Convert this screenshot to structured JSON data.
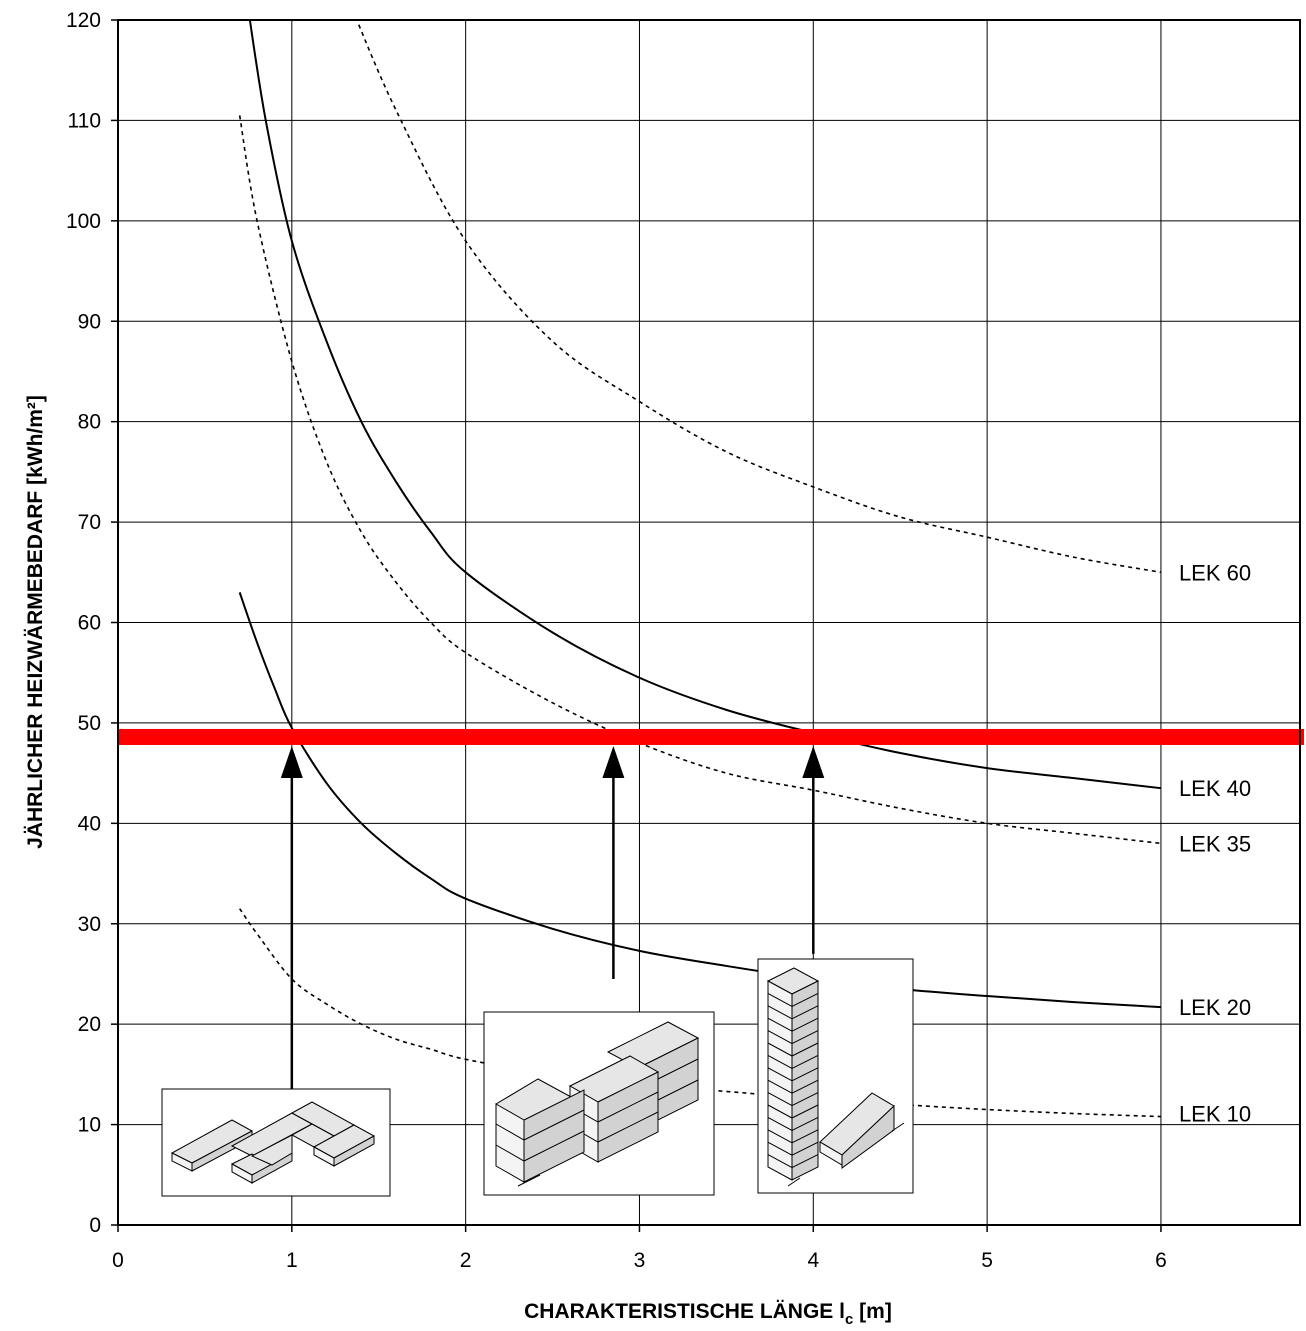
{
  "chart_data": {
    "type": "line",
    "xlabel_main": "CHARAKTERISTISCHE LÄNGE l",
    "xlabel_sub": "c",
    "xlabel_unit": " [m]",
    "ylabel": "JÄHRLICHER HEIZWÄRMEBEDARF  [kWh/m²]",
    "xlim": [
      0,
      6.8
    ],
    "ylim": [
      0,
      120
    ],
    "x_ticks": [
      "0",
      "1",
      "2",
      "3",
      "4",
      "5",
      "6"
    ],
    "y_ticks": [
      "0",
      "10",
      "20",
      "30",
      "40",
      "50",
      "60",
      "70",
      "80",
      "90",
      "100",
      "110",
      "120"
    ],
    "grid": true,
    "series": [
      {
        "name": "LEK 60",
        "style": "dotted",
        "x": [
          1.35,
          1.6,
          2.0,
          2.5,
          3.0,
          3.5,
          4.0,
          4.5,
          5.0,
          5.5,
          6.0
        ],
        "y": [
          121,
          111,
          98,
          88,
          82,
          77,
          73.5,
          70.5,
          68.5,
          66.5,
          65
        ]
      },
      {
        "name": "LEK 40",
        "style": "solid",
        "x": [
          0.75,
          0.85,
          1.0,
          1.2,
          1.4,
          1.6,
          1.8,
          2.0,
          2.5,
          3.0,
          3.5,
          4.0,
          4.5,
          5.0,
          5.5,
          6.0
        ],
        "y": [
          121,
          110,
          98,
          88,
          80,
          74,
          69,
          65,
          59,
          54.5,
          51.3,
          49,
          47,
          45.5,
          44.5,
          43.5
        ]
      },
      {
        "name": "LEK 35",
        "style": "dotted",
        "x": [
          0.7,
          0.8,
          1.0,
          1.2,
          1.4,
          1.6,
          1.8,
          2.0,
          2.5,
          3.0,
          3.5,
          4.0,
          4.5,
          5.0,
          5.5,
          6.0
        ],
        "y": [
          110.5,
          100,
          86,
          76,
          69,
          64,
          60,
          57,
          52,
          48,
          45,
          43.3,
          41.5,
          40,
          39,
          38
        ]
      },
      {
        "name": "LEK 20",
        "style": "solid",
        "x": [
          0.7,
          0.8,
          0.9,
          1.0,
          1.2,
          1.4,
          1.6,
          1.8,
          2.0,
          2.5,
          3.0,
          3.5,
          4.0,
          4.5,
          5.0,
          5.5,
          6.0
        ],
        "y": [
          63,
          58,
          53.5,
          49.5,
          44,
          40,
          37,
          34.5,
          32.5,
          29.5,
          27.3,
          25.8,
          24.5,
          23.5,
          22.8,
          22.2,
          21.7
        ]
      },
      {
        "name": "LEK 10",
        "style": "dotted",
        "x": [
          0.7,
          0.8,
          1.0,
          1.2,
          1.4,
          1.6,
          1.8,
          2.0,
          2.5,
          3.0,
          3.5,
          4.0,
          4.5,
          5.0,
          5.5,
          6.0
        ],
        "y": [
          31.5,
          29,
          24.5,
          22,
          20,
          18.5,
          17.5,
          16.5,
          15,
          14,
          13.3,
          12.6,
          12,
          11.5,
          11.1,
          10.8
        ]
      }
    ],
    "reference_line": {
      "y": 48.6,
      "color": "#ff0000"
    },
    "arrows": [
      {
        "x": 1.0,
        "from_y": 13.5,
        "to_y": 47.5
      },
      {
        "x": 2.85,
        "from_y": 24.5,
        "to_y": 47.5
      },
      {
        "x": 4.0,
        "from_y": 27,
        "to_y": 47.5
      }
    ],
    "colors": {
      "lines": "#000000",
      "reference_line": "#ff0000",
      "grid": "#000000",
      "building_fill": "#e6e6e6"
    }
  },
  "insets": [
    {
      "icon": "u-shaped-low-building-icon"
    },
    {
      "icon": "stacked-block-building-icon"
    },
    {
      "icon": "tower-with-wing-building-icon"
    }
  ]
}
